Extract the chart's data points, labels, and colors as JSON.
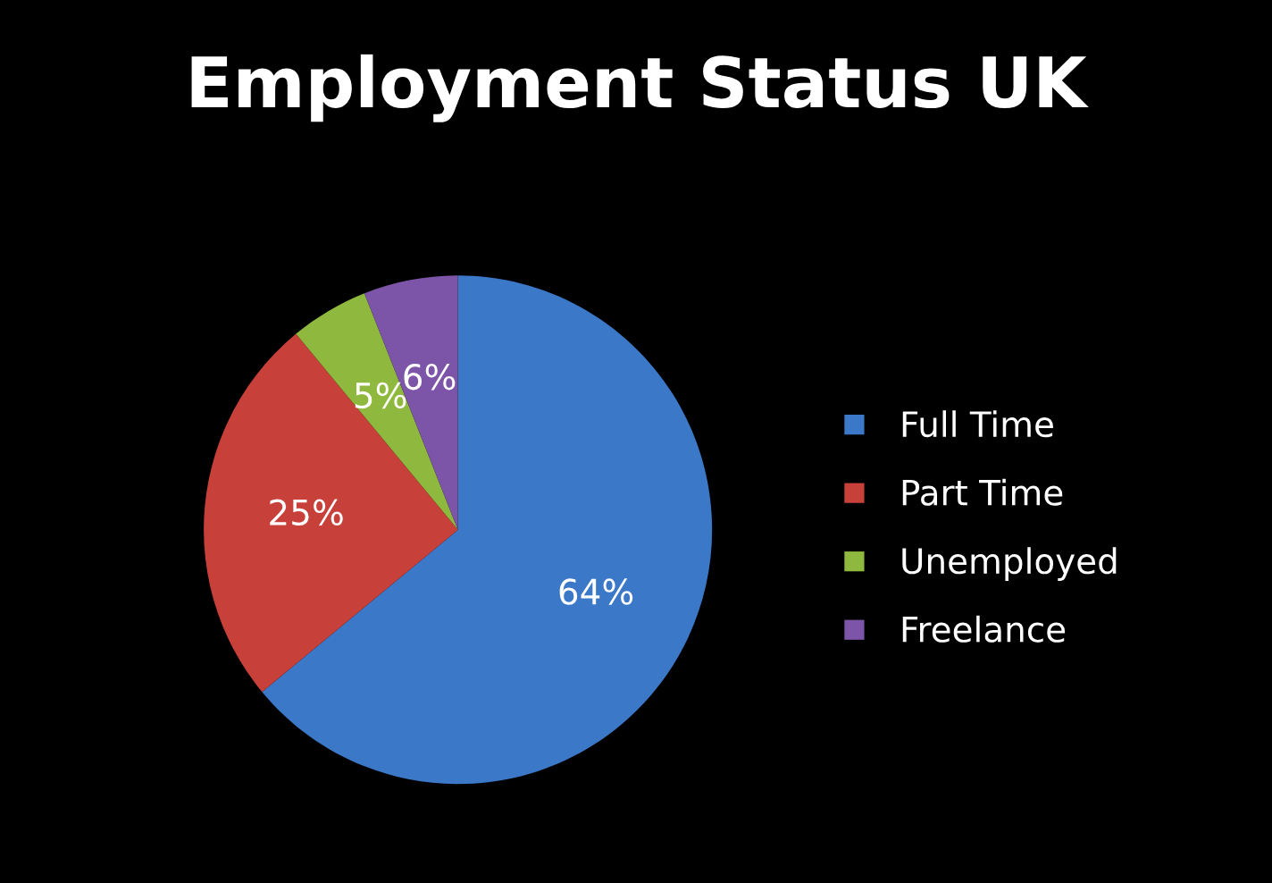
{
  "chart_data": {
    "type": "pie",
    "title": "Employment Status UK",
    "categories": [
      "Full Time",
      "Part Time",
      "Unemployed",
      "Freelance"
    ],
    "values": [
      64,
      25,
      5,
      6
    ],
    "colors": [
      "#3b78c8",
      "#c8403a",
      "#8fb83e",
      "#7d55a8"
    ],
    "value_labels": [
      "64%",
      "25%",
      "5%",
      "6%"
    ],
    "legend": "right"
  }
}
